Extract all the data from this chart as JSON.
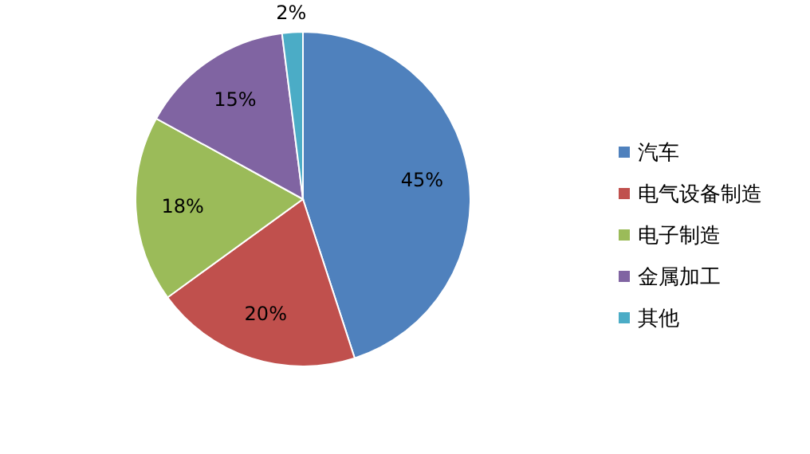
{
  "chart_data": {
    "type": "pie",
    "categories": [
      "汽车",
      "电气设备制造",
      "电子制造",
      "金属加工",
      "其他"
    ],
    "values": [
      45,
      20,
      18,
      15,
      2
    ],
    "colors": [
      "#4f81bd",
      "#c0504d",
      "#9bbb59",
      "#8064a2",
      "#4bacc6"
    ],
    "value_labels": [
      "45%",
      "20%",
      "18%",
      "15%",
      "2%"
    ],
    "legend": "right"
  }
}
